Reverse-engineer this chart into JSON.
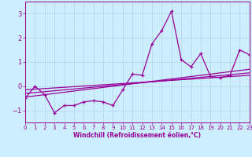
{
  "xlabel": "Windchill (Refroidissement éolien,°C)",
  "ylabel": "",
  "background_color": "#cceeff",
  "grid_color": "#aaddee",
  "line_color": "#990099",
  "xlim": [
    0,
    23
  ],
  "ylim": [
    -1.5,
    3.5
  ],
  "xticks": [
    0,
    1,
    2,
    3,
    4,
    5,
    6,
    7,
    8,
    9,
    10,
    11,
    12,
    13,
    14,
    15,
    16,
    17,
    18,
    19,
    20,
    21,
    22,
    23
  ],
  "yticks": [
    -1,
    0,
    1,
    2,
    3
  ],
  "data_line": [
    [
      0,
      -0.5
    ],
    [
      1,
      0.0
    ],
    [
      2,
      -0.35
    ],
    [
      3,
      -1.1
    ],
    [
      4,
      -0.8
    ],
    [
      5,
      -0.8
    ],
    [
      6,
      -0.65
    ],
    [
      7,
      -0.6
    ],
    [
      8,
      -0.65
    ],
    [
      9,
      -0.8
    ],
    [
      10,
      -0.15
    ],
    [
      11,
      0.5
    ],
    [
      12,
      0.45
    ],
    [
      13,
      1.75
    ],
    [
      14,
      2.3
    ],
    [
      15,
      3.1
    ],
    [
      16,
      1.1
    ],
    [
      17,
      0.8
    ],
    [
      18,
      1.35
    ],
    [
      19,
      0.4
    ],
    [
      20,
      0.35
    ],
    [
      21,
      0.45
    ],
    [
      22,
      1.5
    ],
    [
      23,
      1.3
    ]
  ],
  "regression_lines": [
    [
      [
        0,
        -0.45
      ],
      [
        23,
        0.7
      ]
    ],
    [
      [
        0,
        -0.3
      ],
      [
        23,
        0.55
      ]
    ],
    [
      [
        0,
        -0.15
      ],
      [
        23,
        0.45
      ]
    ]
  ]
}
